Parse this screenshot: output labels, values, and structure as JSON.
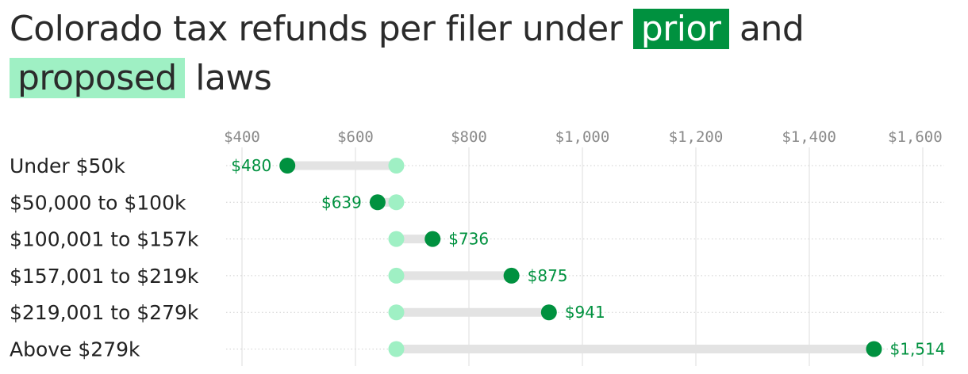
{
  "title": {
    "before": "Colorado tax refunds per filer under",
    "prior": "prior",
    "middle": "and",
    "proposed": "proposed",
    "after": "laws"
  },
  "colors": {
    "prior": "#00913f",
    "proposed": "#9ff0c4",
    "connector": "#e3e3e3",
    "grid": "#dddddd",
    "row_guide": "#cfcfcf"
  },
  "chart_data": {
    "type": "dumbbell",
    "x_ticks": [
      400,
      600,
      800,
      1000,
      1200,
      1400,
      1600
    ],
    "x_tick_labels": [
      "$400",
      "$600",
      "$800",
      "$1,000",
      "$1,200",
      "$1,400",
      "$1,600"
    ],
    "xlim": [
      370,
      1640
    ],
    "grid": true,
    "categories": [
      "Under $50k",
      "$50,000 to $100k",
      "$100,001 to $157k",
      "$157,001 to $219k",
      "$219,001 to $279k",
      "Above $279k"
    ],
    "series": [
      {
        "name": "prior",
        "values": [
          672,
          672,
          672,
          672,
          672,
          672
        ]
      },
      {
        "name": "proposed",
        "values": [
          480,
          639,
          736,
          875,
          941,
          1514
        ]
      }
    ],
    "value_labels": [
      "$480",
      "$639",
      "$736",
      "$875",
      "$941",
      "$1,514"
    ]
  }
}
